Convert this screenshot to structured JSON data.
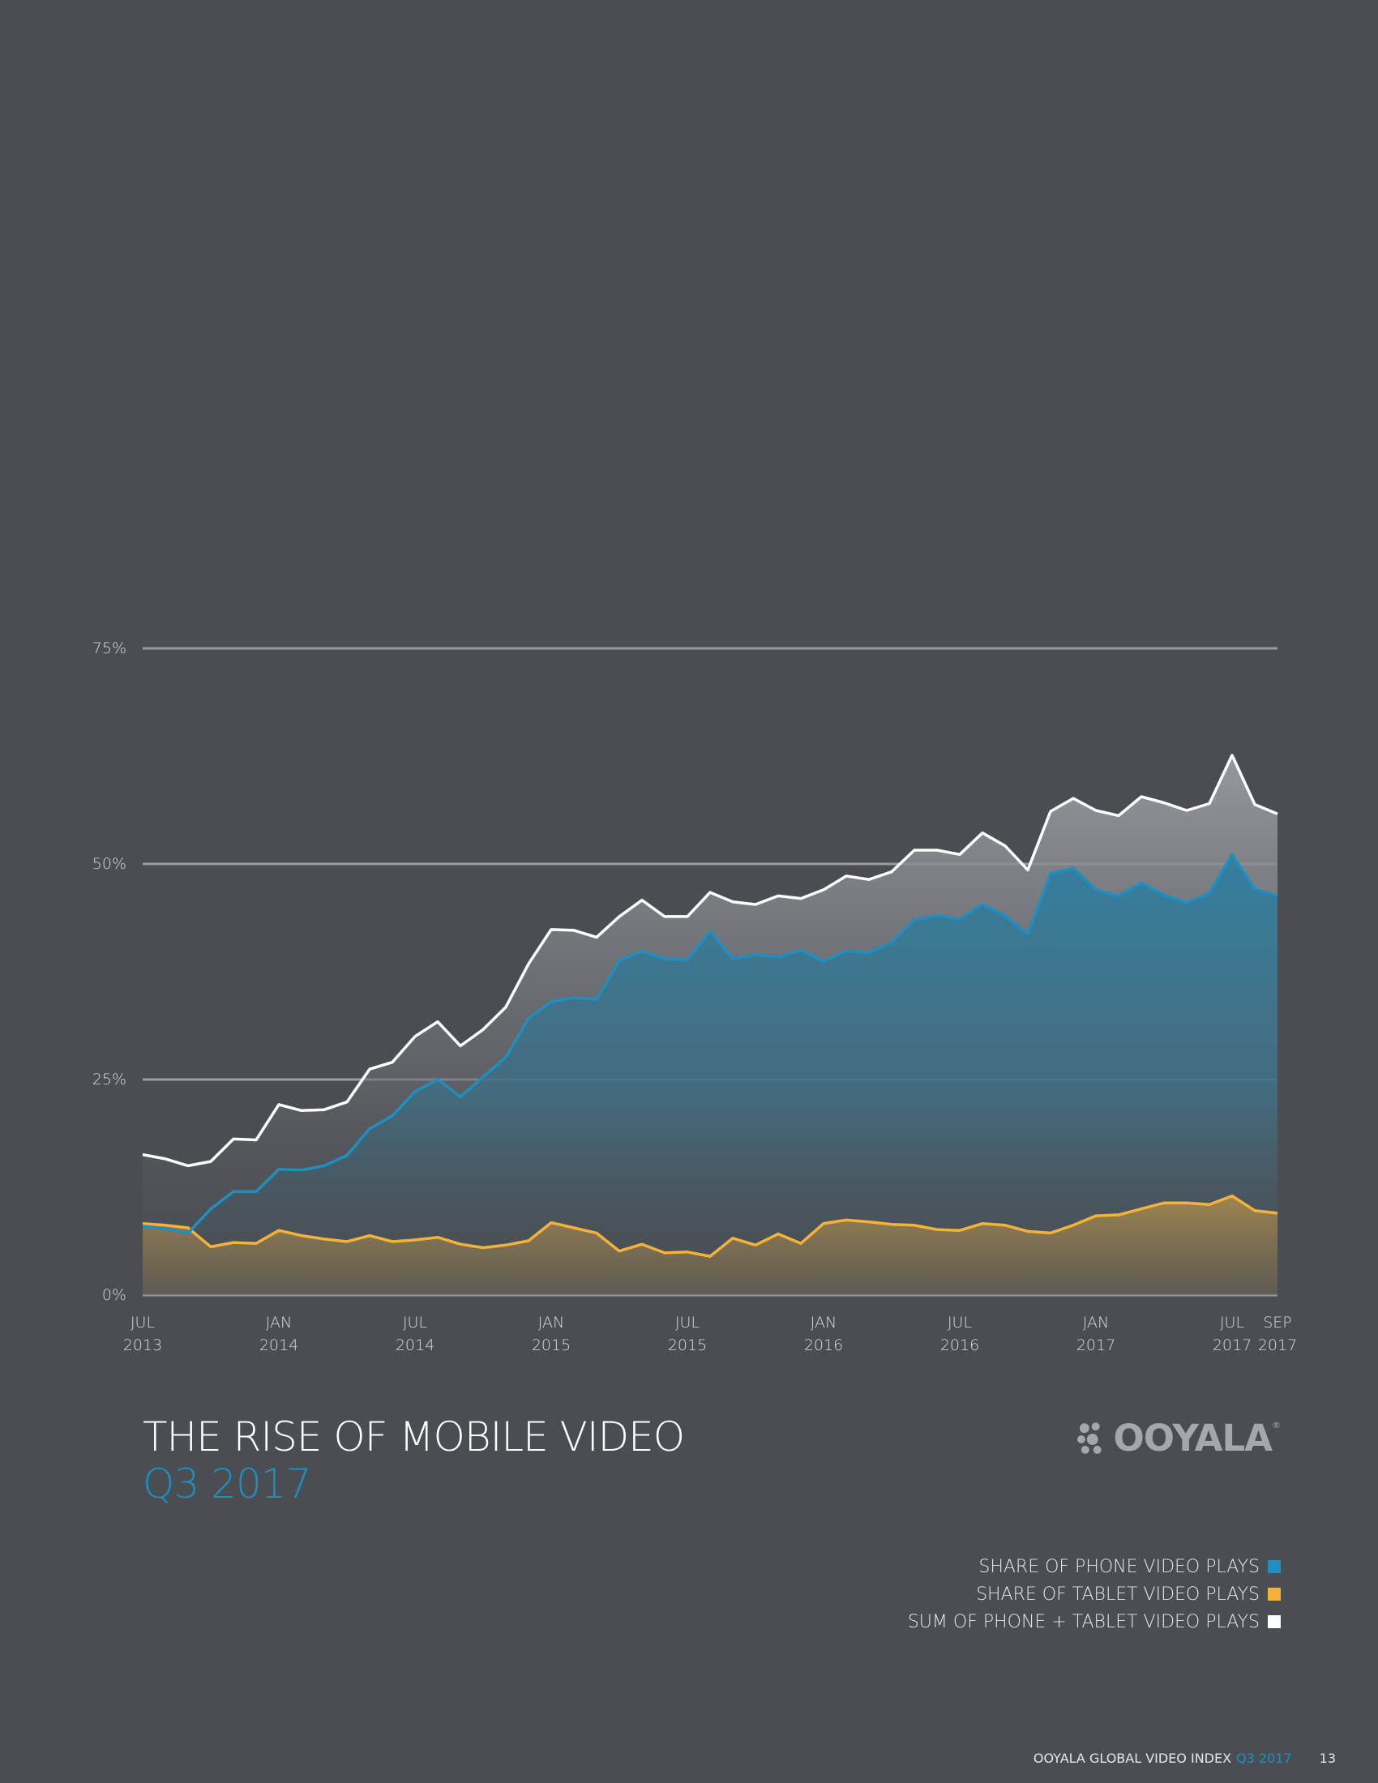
{
  "title": "THE RISE OF MOBILE VIDEO",
  "subtitle": "Q3 2017",
  "logo": {
    "text": "OOYALA",
    "mark": "®"
  },
  "legend": [
    {
      "label": "SHARE OF PHONE VIDEO PLAYS",
      "color": "#1e8fc0"
    },
    {
      "label": "SHARE OF TABLET VIDEO PLAYS",
      "color": "#f4b23a"
    },
    {
      "label": "SUM OF PHONE + TABLET VIDEO PLAYS",
      "color": "#ffffff"
    }
  ],
  "footer": {
    "text": "OOYALA GLOBAL VIDEO INDEX",
    "quarter": "Q3 2017",
    "page": "13"
  },
  "colors": {
    "background": "#4a4d52",
    "phone": "#1e8fc0",
    "tablet": "#f4b23a",
    "sum": "#ffffff",
    "grid": "#9a9c9f"
  },
  "chart_data": {
    "type": "area",
    "x_start": "2013-07",
    "x_end": "2017-09",
    "x_ticks": [
      {
        "index": 0,
        "line1": "JUL",
        "line2": "2013"
      },
      {
        "index": 6,
        "line1": "JAN",
        "line2": "2014"
      },
      {
        "index": 12,
        "line1": "JUL",
        "line2": "2014"
      },
      {
        "index": 18,
        "line1": "JAN",
        "line2": "2015"
      },
      {
        "index": 24,
        "line1": "JUL",
        "line2": "2015"
      },
      {
        "index": 30,
        "line1": "JAN",
        "line2": "2016"
      },
      {
        "index": 36,
        "line1": "JUL",
        "line2": "2016"
      },
      {
        "index": 42,
        "line1": "JAN",
        "line2": "2017"
      },
      {
        "index": 48,
        "line1": "JUL",
        "line2": "2017"
      },
      {
        "index": 50,
        "line1": "SEP",
        "line2": "2017"
      }
    ],
    "y_ticks": [
      0,
      25,
      50,
      75
    ],
    "y_tick_labels": [
      "0%",
      "25%",
      "50%",
      "75%"
    ],
    "ylim": [
      0,
      75
    ],
    "grid": true,
    "series": [
      {
        "name": "SHARE OF PHONE VIDEO PLAYS",
        "color": "#1e8fc0",
        "values": [
          8.0,
          7.7,
          7.2,
          10.0,
          12.0,
          12.0,
          14.6,
          14.5,
          15.0,
          16.2,
          19.3,
          20.8,
          23.6,
          25.0,
          23.0,
          25.3,
          27.6,
          32.1,
          34.0,
          34.5,
          34.3,
          38.8,
          39.9,
          39.0,
          38.9,
          42.2,
          39.0,
          39.5,
          39.2,
          40.0,
          38.7,
          39.9,
          39.7,
          40.9,
          43.5,
          44.0,
          43.6,
          45.3,
          44.0,
          41.9,
          48.9,
          49.5,
          47.0,
          46.3,
          47.8,
          46.4,
          45.5,
          46.6,
          51.1,
          47.1,
          46.3
        ]
      },
      {
        "name": "SHARE OF TABLET VIDEO PLAYS",
        "color": "#f4b23a",
        "values": [
          8.3,
          8.1,
          7.8,
          5.6,
          6.1,
          6.0,
          7.5,
          6.9,
          6.5,
          6.2,
          6.9,
          6.2,
          6.4,
          6.7,
          5.9,
          5.5,
          5.8,
          6.3,
          8.4,
          7.8,
          7.2,
          5.1,
          5.9,
          4.9,
          5.0,
          4.5,
          6.6,
          5.8,
          7.1,
          6.0,
          8.3,
          8.7,
          8.5,
          8.2,
          8.1,
          7.6,
          7.5,
          8.3,
          8.1,
          7.4,
          7.2,
          8.1,
          9.2,
          9.3,
          10.0,
          10.7,
          10.7,
          10.5,
          11.5,
          9.8,
          9.5
        ]
      },
      {
        "name": "SUM OF PHONE + TABLET VIDEO PLAYS",
        "color": "#ffffff",
        "values": [
          16.3,
          15.8,
          15.0,
          15.5,
          18.1,
          18.0,
          22.1,
          21.4,
          21.5,
          22.4,
          26.2,
          27.0,
          30.0,
          31.7,
          28.9,
          30.8,
          33.4,
          38.4,
          42.4,
          42.3,
          41.5,
          43.9,
          45.8,
          43.9,
          43.9,
          46.7,
          45.6,
          45.3,
          46.3,
          46.0,
          47.0,
          48.6,
          48.2,
          49.1,
          51.6,
          51.6,
          51.1,
          53.6,
          52.1,
          49.3,
          56.1,
          57.6,
          56.2,
          55.6,
          57.8,
          57.1,
          56.2,
          57.0,
          62.6,
          56.9,
          55.8
        ]
      }
    ]
  }
}
